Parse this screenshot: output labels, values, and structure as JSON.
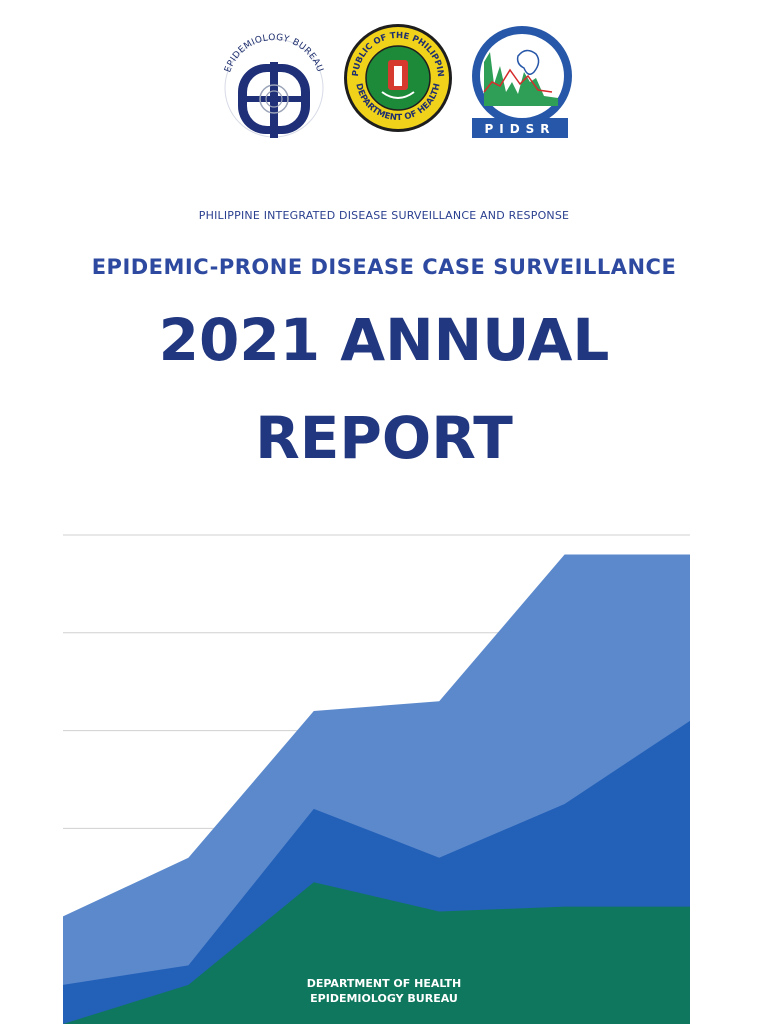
{
  "logos": {
    "epidemiology_bureau": {
      "text": "EPIDEMIOLOGY BUREAU",
      "icon": "epidemiology-bureau-logo"
    },
    "doh_seal": {
      "top_text": "REPUBLIC OF THE PHILIPPINES",
      "bottom_text": "DEPARTMENT OF HEALTH",
      "icon": "doh-seal"
    },
    "pidsr": {
      "text": "PIDSR",
      "icon": "pidsr-logo"
    }
  },
  "header": {
    "subtitle": "PHILIPPINE INTEGRATED DISEASE SURVEILLANCE AND RESPONSE",
    "title": "EPIDEMIC-PRONE DISEASE CASE SURVEILLANCE",
    "report_line1": "2021 ANNUAL",
    "report_line2": "REPORT"
  },
  "footer": {
    "line1": "DEPARTMENT OF HEALTH",
    "line2": "EPIDEMIOLOGY BUREAU"
  },
  "colors": {
    "title_blue": "#2d4aa0",
    "dark_navy": "#21377f",
    "area_light_blue": "#5b89cc",
    "area_mid_blue": "#2360b8",
    "area_green": "#0f775e",
    "grid": "#d0d0d0"
  },
  "chart_data": {
    "type": "area",
    "x": [
      1,
      2,
      3,
      4,
      5,
      6
    ],
    "series": [
      {
        "values": [
          0.0,
          0.4,
          1.45,
          1.15,
          1.2,
          1.2
        ]
      },
      {
        "values": [
          0.4,
          0.6,
          2.2,
          1.7,
          2.25,
          3.1
        ]
      },
      {
        "values": [
          1.1,
          1.7,
          3.2,
          3.3,
          4.8,
          4.8
        ]
      }
    ],
    "ylim": [
      0,
      5
    ],
    "grid": true
  }
}
